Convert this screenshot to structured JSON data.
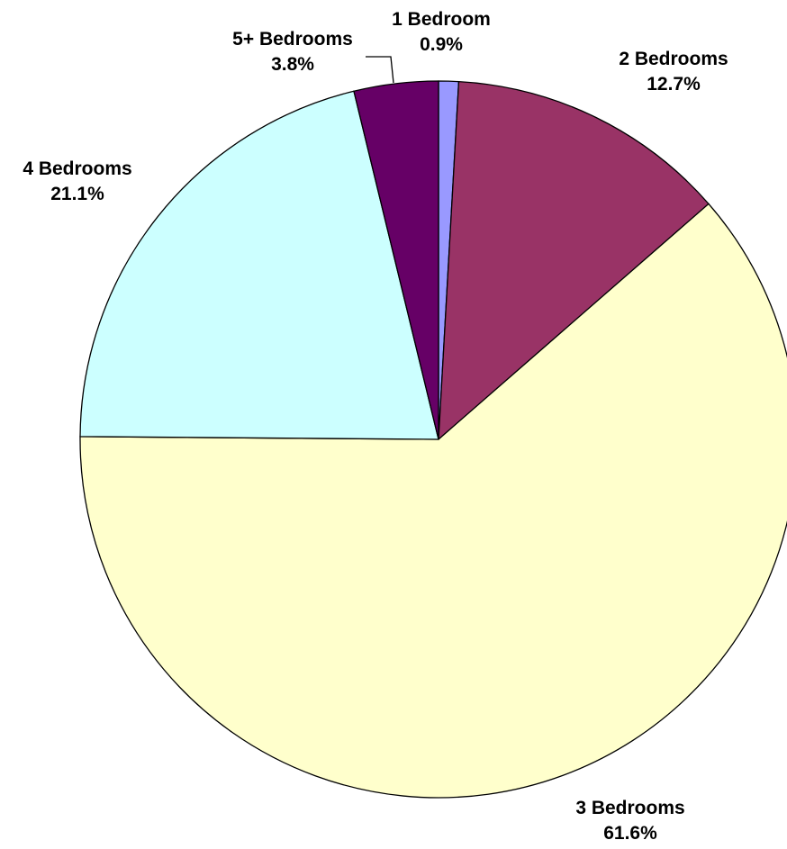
{
  "chart_data": {
    "type": "pie",
    "title": "",
    "start_angle_deg": 0,
    "direction": "clockwise",
    "slices": [
      {
        "label": "1 Bedroom",
        "value": 0.9,
        "display": "0.9%",
        "color": "#9999ff"
      },
      {
        "label": "2 Bedrooms",
        "value": 12.7,
        "display": "12.7%",
        "color": "#993366"
      },
      {
        "label": "3 Bedrooms",
        "value": 61.6,
        "display": "61.6%",
        "color": "#ffffcc"
      },
      {
        "label": "4 Bedrooms",
        "value": 21.1,
        "display": "21.1%",
        "color": "#ccffff"
      },
      {
        "label": "5+ Bedrooms",
        "value": 3.8,
        "display": "3.8%",
        "color": "#660066"
      }
    ],
    "legend": "none",
    "data_labels": "category and percent"
  }
}
